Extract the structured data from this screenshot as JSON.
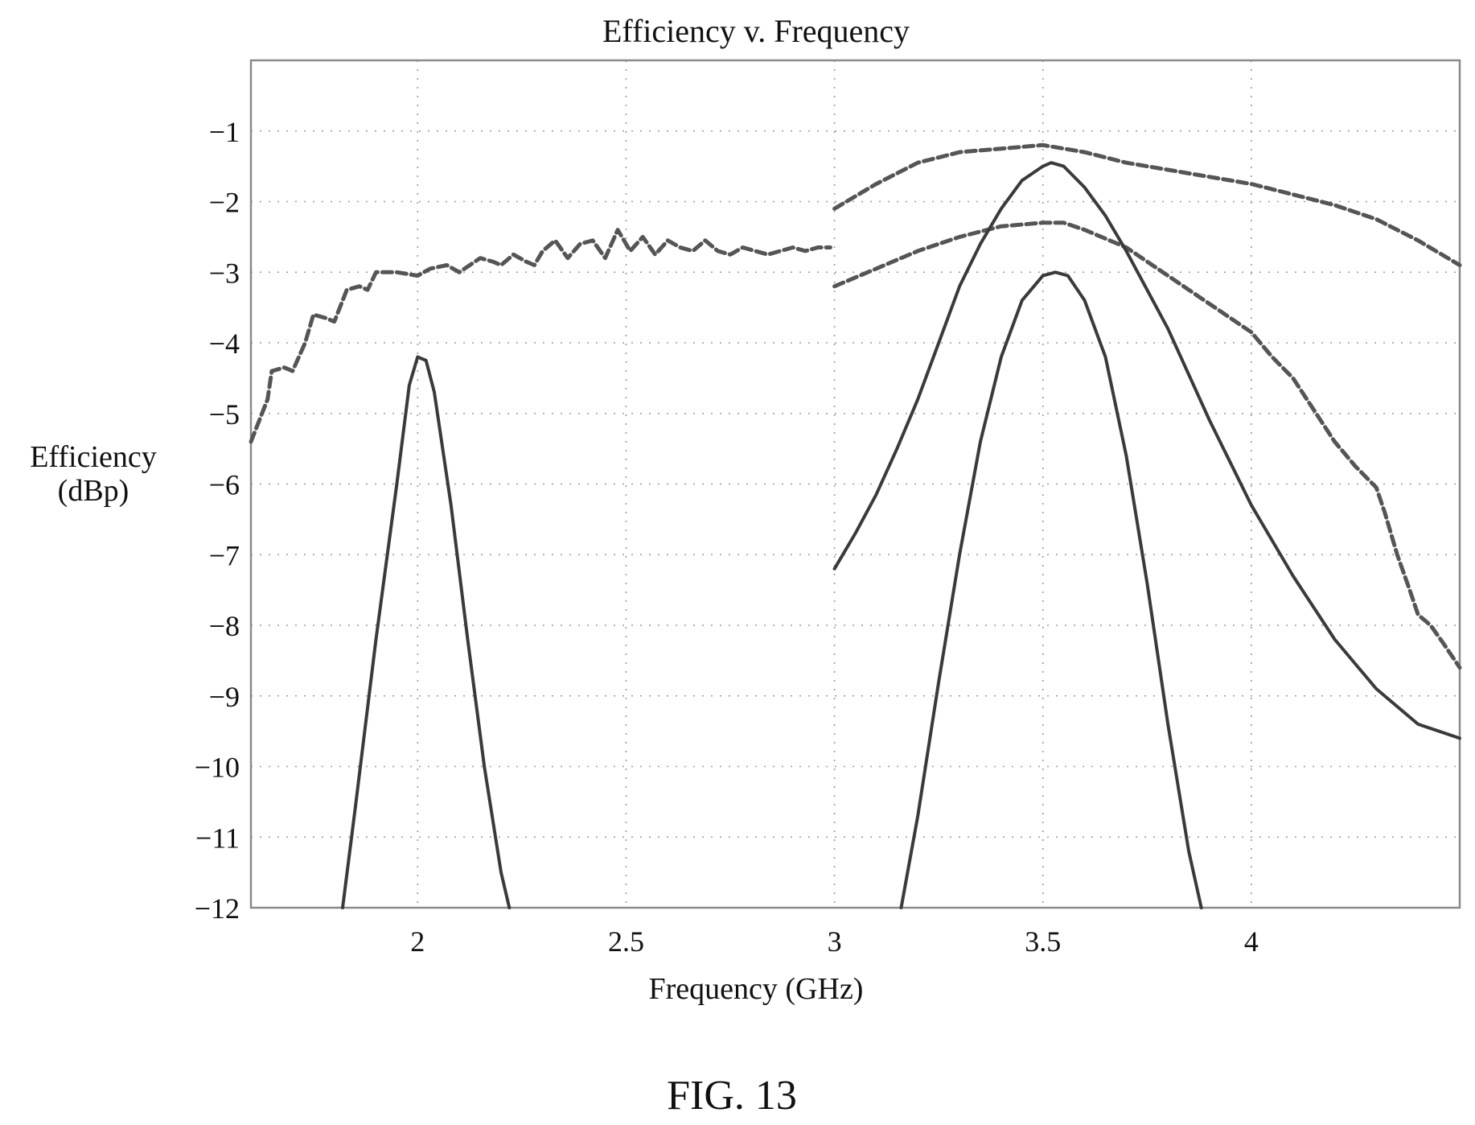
{
  "chart_data": {
    "type": "line",
    "title": "Efficiency v. Frequency",
    "xlabel": "Frequency (GHz)",
    "ylabel": [
      "Efficiency",
      "(dBp)"
    ],
    "xlim": [
      1.6,
      4.5
    ],
    "ylim": [
      -12,
      0
    ],
    "xticks": [
      2,
      2.5,
      3,
      3.5,
      4
    ],
    "xtick_labels": [
      "2",
      "2.5",
      "3",
      "3.5",
      "4"
    ],
    "yticks": [
      -1,
      -2,
      -3,
      -4,
      -5,
      -6,
      -7,
      -8,
      -9,
      -10,
      -11,
      -12
    ],
    "ytick_labels": [
      "−1",
      "−2",
      "−3",
      "−4",
      "−5",
      "−6",
      "−7",
      "−8",
      "−9",
      "−10",
      "−11",
      "−12"
    ],
    "grid": true,
    "series": [
      {
        "style": "dashed",
        "color": "#555555",
        "x": [
          1.6,
          1.64,
          1.65,
          1.68,
          1.7,
          1.73,
          1.75,
          1.78,
          1.8,
          1.83,
          1.86,
          1.88,
          1.9,
          1.95,
          2.0,
          2.03,
          2.07,
          2.1,
          2.15,
          2.18,
          2.2,
          2.23,
          2.26,
          2.28,
          2.3,
          2.33,
          2.36,
          2.39,
          2.42,
          2.45,
          2.48,
          2.51,
          2.54,
          2.57,
          2.6,
          2.63,
          2.66,
          2.69,
          2.72,
          2.75,
          2.78,
          2.81,
          2.84,
          2.87,
          2.9,
          2.93,
          2.96,
          2.99
        ],
        "y": [
          -5.4,
          -4.8,
          -4.4,
          -4.35,
          -4.4,
          -4.0,
          -3.6,
          -3.65,
          -3.7,
          -3.25,
          -3.2,
          -3.25,
          -3.0,
          -3.0,
          -3.05,
          -2.95,
          -2.9,
          -3.0,
          -2.8,
          -2.85,
          -2.9,
          -2.75,
          -2.85,
          -2.9,
          -2.7,
          -2.55,
          -2.8,
          -2.6,
          -2.55,
          -2.8,
          -2.4,
          -2.7,
          -2.5,
          -2.75,
          -2.55,
          -2.65,
          -2.7,
          -2.55,
          -2.7,
          -2.75,
          -2.65,
          -2.7,
          -2.75,
          -2.7,
          -2.65,
          -2.7,
          -2.65,
          -2.65
        ]
      },
      {
        "style": "dashed",
        "color": "#555555",
        "x": [
          3.0,
          3.1,
          3.2,
          3.3,
          3.4,
          3.5,
          3.6,
          3.7,
          3.8,
          3.9,
          4.0,
          4.1,
          4.2,
          4.3,
          4.4,
          4.5
        ],
        "y": [
          -2.1,
          -1.75,
          -1.45,
          -1.3,
          -1.25,
          -1.2,
          -1.3,
          -1.45,
          -1.55,
          -1.65,
          -1.75,
          -1.9,
          -2.05,
          -2.25,
          -2.55,
          -2.9
        ]
      },
      {
        "style": "dashed",
        "color": "#555555",
        "x": [
          3.0,
          3.1,
          3.2,
          3.3,
          3.4,
          3.5,
          3.55,
          3.6,
          3.7,
          3.8,
          3.9,
          4.0,
          4.05,
          4.1,
          4.15,
          4.2,
          4.25,
          4.3,
          4.32,
          4.35,
          4.38,
          4.4,
          4.43,
          4.46,
          4.5
        ],
        "y": [
          -3.2,
          -2.95,
          -2.7,
          -2.5,
          -2.35,
          -2.3,
          -2.3,
          -2.4,
          -2.65,
          -3.05,
          -3.45,
          -3.85,
          -4.2,
          -4.5,
          -4.95,
          -5.4,
          -5.75,
          -6.05,
          -6.4,
          -7.0,
          -7.5,
          -7.85,
          -8.0,
          -8.25,
          -8.6
        ]
      },
      {
        "style": "solid",
        "color": "#3a3a3a",
        "x": [
          1.82,
          1.85,
          1.9,
          1.95,
          1.98,
          2.0,
          2.02,
          2.04,
          2.08,
          2.12,
          2.16,
          2.2,
          2.22
        ],
        "y": [
          -12.0,
          -10.6,
          -8.2,
          -6.0,
          -4.6,
          -4.2,
          -4.25,
          -4.7,
          -6.3,
          -8.2,
          -10.0,
          -11.5,
          -12.0
        ]
      },
      {
        "style": "solid",
        "color": "#3a3a3a",
        "x": [
          3.0,
          3.05,
          3.1,
          3.15,
          3.2,
          3.25,
          3.3,
          3.35,
          3.4,
          3.45,
          3.5,
          3.52,
          3.55,
          3.6,
          3.65,
          3.7,
          3.8,
          3.9,
          4.0,
          4.1,
          4.2,
          4.3,
          4.4,
          4.5
        ],
        "y": [
          -7.2,
          -6.7,
          -6.15,
          -5.5,
          -4.8,
          -4.0,
          -3.2,
          -2.6,
          -2.1,
          -1.7,
          -1.5,
          -1.45,
          -1.5,
          -1.8,
          -2.2,
          -2.7,
          -3.8,
          -5.1,
          -6.3,
          -7.3,
          -8.2,
          -8.9,
          -9.4,
          -9.6
        ]
      },
      {
        "style": "solid",
        "color": "#3a3a3a",
        "x": [
          3.16,
          3.2,
          3.25,
          3.3,
          3.35,
          3.4,
          3.45,
          3.5,
          3.53,
          3.56,
          3.6,
          3.65,
          3.7,
          3.75,
          3.8,
          3.85,
          3.88
        ],
        "y": [
          -12.0,
          -10.7,
          -8.8,
          -7.0,
          -5.4,
          -4.2,
          -3.4,
          -3.05,
          -3.0,
          -3.05,
          -3.4,
          -4.2,
          -5.6,
          -7.4,
          -9.4,
          -11.2,
          -12.0
        ]
      }
    ]
  },
  "figure_caption": "FIG. 13"
}
